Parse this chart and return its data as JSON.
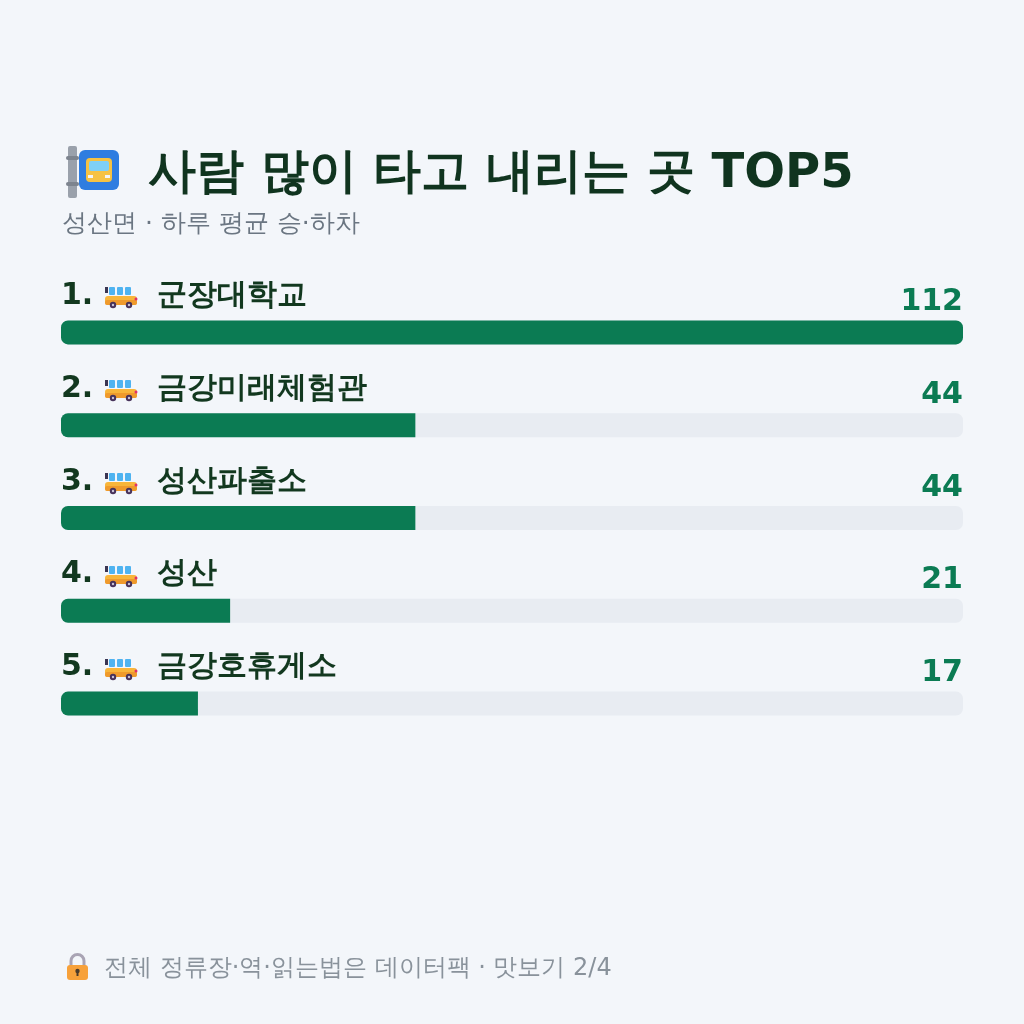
{
  "chart_data": {
    "type": "bar",
    "orientation": "horizontal",
    "title": "사람 많이 타고 내리는 곳 TOP5",
    "subtitle": "성산면 · 하루 평균 승·하차",
    "categories": [
      "1. 군장대학교",
      "2. 금강미래체험관",
      "3. 성산파출소",
      "4. 성산",
      "5. 금강호휴게소"
    ],
    "values": [
      112,
      44,
      44,
      21,
      17
    ],
    "color": "#0b7b53",
    "data_labels": true,
    "tick_labels": "y",
    "annotations": [
      "전체 정류장·역·읽는법은 데이터팩 · 맛보기 2/4"
    ]
  }
}
